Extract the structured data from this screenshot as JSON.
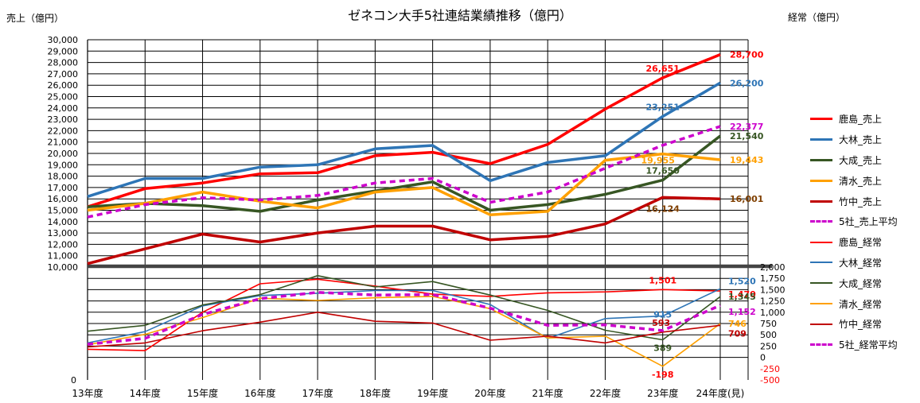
{
  "title": "ゼネコン大手5社連結業績推移（億円）",
  "left_axis_title": "売上（億円）",
  "right_axis_title": "経常（億円）",
  "chart_data": {
    "type": "line",
    "title": "ゼネコン大手5社連結業績推移（億円）",
    "categories": [
      "13年度",
      "14年度",
      "15年度",
      "16年度",
      "17年度",
      "18年度",
      "19年度",
      "20年度",
      "21年度",
      "22年度",
      "23年度",
      "24年度(見)"
    ],
    "sales_axis": {
      "label": "売上（億円）",
      "range": [
        10000,
        30000
      ],
      "tick_step": 1000,
      "bottom_label": "0"
    },
    "profit_axis": {
      "label": "経常（億円）",
      "range": [
        -500,
        2000
      ],
      "tick_step": 250,
      "tick_labels": [
        "-500",
        "-250",
        "0",
        "250",
        "500",
        "750",
        "1,000",
        "1,250",
        "1,500",
        "1,750",
        "2,000"
      ]
    },
    "grid": true,
    "legend_position": "right",
    "series": [
      {
        "name": "鹿島_売上",
        "axis": "sales",
        "color": "#ff0000",
        "width": 3.5,
        "dash": "",
        "values": [
          15300,
          16900,
          17400,
          18200,
          18300,
          19800,
          20100,
          19100,
          20800,
          23900,
          26651,
          28700
        ]
      },
      {
        "name": "大林_売上",
        "axis": "sales",
        "color": "#2e75b6",
        "width": 3.5,
        "dash": "",
        "values": [
          16200,
          17800,
          17800,
          18800,
          19000,
          20400,
          20700,
          17600,
          19200,
          19800,
          23251,
          26200
        ]
      },
      {
        "name": "大成_売上",
        "axis": "sales",
        "color": "#375623",
        "width": 3.5,
        "dash": "",
        "values": [
          15300,
          15600,
          15400,
          14900,
          15900,
          16700,
          17500,
          15000,
          15500,
          16400,
          17650,
          21540
        ]
      },
      {
        "name": "清水_売上",
        "axis": "sales",
        "color": "#ffa000",
        "width": 3.5,
        "dash": "",
        "values": [
          15000,
          15600,
          16600,
          15800,
          15200,
          16600,
          17000,
          14600,
          14900,
          19400,
          19955,
          19443
        ]
      },
      {
        "name": "竹中_売上",
        "axis": "sales",
        "color": "#c00000",
        "width": 3.5,
        "dash": "",
        "values": [
          10300,
          11600,
          12900,
          12200,
          13000,
          13600,
          13600,
          12400,
          12700,
          13800,
          16124,
          16001
        ]
      },
      {
        "name": "5社_売上平均",
        "axis": "sales",
        "color": "#cc00cc",
        "width": 3.5,
        "dash": "7,5",
        "values": [
          14400,
          15500,
          16100,
          15900,
          16300,
          17400,
          17800,
          15700,
          16600,
          18700,
          20710,
          22377
        ]
      },
      {
        "name": "鹿島_経常",
        "axis": "profit",
        "color": "#ff0000",
        "width": 1.6,
        "dash": "",
        "values": [
          180,
          150,
          1000,
          1630,
          1730,
          1580,
          1400,
          1350,
          1430,
          1450,
          1501,
          1470
        ]
      },
      {
        "name": "大林_経常",
        "axis": "profit",
        "color": "#2e75b6",
        "width": 1.6,
        "dash": "",
        "values": [
          320,
          570,
          1140,
          1370,
          1420,
          1480,
          1480,
          1170,
          420,
          860,
          915,
          1520
        ]
      },
      {
        "name": "大成_経常",
        "axis": "profit",
        "color": "#375623",
        "width": 1.6,
        "dash": "",
        "values": [
          580,
          710,
          1160,
          1390,
          1810,
          1560,
          1680,
          1380,
          1040,
          600,
          389,
          1345
        ]
      },
      {
        "name": "清水_経常",
        "axis": "profit",
        "color": "#ffa000",
        "width": 1.6,
        "dash": "",
        "values": [
          280,
          510,
          880,
          1310,
          1260,
          1320,
          1350,
          1080,
          430,
          470,
          -198,
          746
        ]
      },
      {
        "name": "竹中_経常",
        "axis": "profit",
        "color": "#c00000",
        "width": 1.6,
        "dash": "",
        "values": [
          230,
          320,
          590,
          780,
          1000,
          800,
          760,
          380,
          470,
          320,
          560,
          709
        ]
      },
      {
        "name": "5社_経常平均",
        "axis": "profit",
        "color": "#cc00cc",
        "width": 3.5,
        "dash": "7,5",
        "values": [
          290,
          420,
          950,
          1300,
          1440,
          1380,
          1390,
          1090,
          710,
          720,
          593,
          1152
        ]
      }
    ],
    "data_labels": [
      {
        "series": 0,
        "index": 10,
        "text": "26,651",
        "color": "#ff0000",
        "dx": 0,
        "dy": -8,
        "anchor": "middle"
      },
      {
        "series": 0,
        "index": 11,
        "text": "28,700",
        "color": "#ff0000",
        "dx": 12,
        "dy": 4,
        "anchor": "start"
      },
      {
        "series": 1,
        "index": 10,
        "text": "23,251",
        "color": "#2e75b6",
        "dx": 0,
        "dy": -8,
        "anchor": "middle"
      },
      {
        "series": 1,
        "index": 11,
        "text": "26,200",
        "color": "#2e75b6",
        "dx": 12,
        "dy": 4,
        "anchor": "start"
      },
      {
        "series": 5,
        "index": 11,
        "text": "22,377",
        "color": "#cc00cc",
        "dx": 12,
        "dy": 4,
        "anchor": "start"
      },
      {
        "series": 2,
        "index": 11,
        "text": "21,540",
        "color": "#375623",
        "dx": 12,
        "dy": 4,
        "anchor": "start"
      },
      {
        "series": 3,
        "index": 10,
        "text": "19,955",
        "color": "#ffa000",
        "dx": -6,
        "dy": 12,
        "anchor": "middle"
      },
      {
        "series": 3,
        "index": 11,
        "text": "19,443",
        "color": "#ffa000",
        "dx": 12,
        "dy": 4,
        "anchor": "start"
      },
      {
        "series": 2,
        "index": 10,
        "text": "17,650",
        "color": "#375623",
        "dx": 0,
        "dy": -8,
        "anchor": "middle"
      },
      {
        "series": 4,
        "index": 10,
        "text": "16,124",
        "color": "#7f3f00",
        "dx": 0,
        "dy": 18,
        "anchor": "middle"
      },
      {
        "series": 4,
        "index": 11,
        "text": "16,001",
        "color": "#7f3f00",
        "dx": 12,
        "dy": 4,
        "anchor": "start"
      },
      {
        "series": 6,
        "index": 10,
        "text": "1,501",
        "color": "#ff0000",
        "dx": 0,
        "dy": -8,
        "anchor": "middle"
      },
      {
        "series": 7,
        "index": 11,
        "text": "1,520",
        "color": "#2e75b6",
        "dx": 10,
        "dy": -6,
        "anchor": "start"
      },
      {
        "series": 6,
        "index": 11,
        "text": "1,470",
        "color": "#ff0000",
        "dx": 10,
        "dy": 8,
        "anchor": "start"
      },
      {
        "series": 8,
        "index": 11,
        "text": "1,345",
        "color": "#375623",
        "dx": 10,
        "dy": 4,
        "anchor": "start"
      },
      {
        "series": 11,
        "index": 11,
        "text": "1,152",
        "color": "#cc00cc",
        "dx": 10,
        "dy": 12,
        "anchor": "start"
      },
      {
        "series": 7,
        "index": 10,
        "text": "915",
        "color": "#2e75b6",
        "dx": 0,
        "dy": 2,
        "anchor": "middle"
      },
      {
        "series": 11,
        "index": 10,
        "text": "593",
        "color": "#c00000",
        "dx": -2,
        "dy": -6,
        "anchor": "middle"
      },
      {
        "series": 9,
        "index": 11,
        "text": "746",
        "color": "#ffa000",
        "dx": 10,
        "dy": 4,
        "anchor": "start"
      },
      {
        "series": 10,
        "index": 11,
        "text": "709",
        "color": "#c00000",
        "dx": 10,
        "dy": 14,
        "anchor": "start"
      },
      {
        "series": 8,
        "index": 10,
        "text": "389",
        "color": "#375623",
        "dx": 0,
        "dy": 14,
        "anchor": "middle"
      },
      {
        "series": 9,
        "index": 10,
        "text": "-198",
        "color": "#ff0000",
        "dx": 0,
        "dy": 14,
        "anchor": "middle"
      }
    ]
  }
}
